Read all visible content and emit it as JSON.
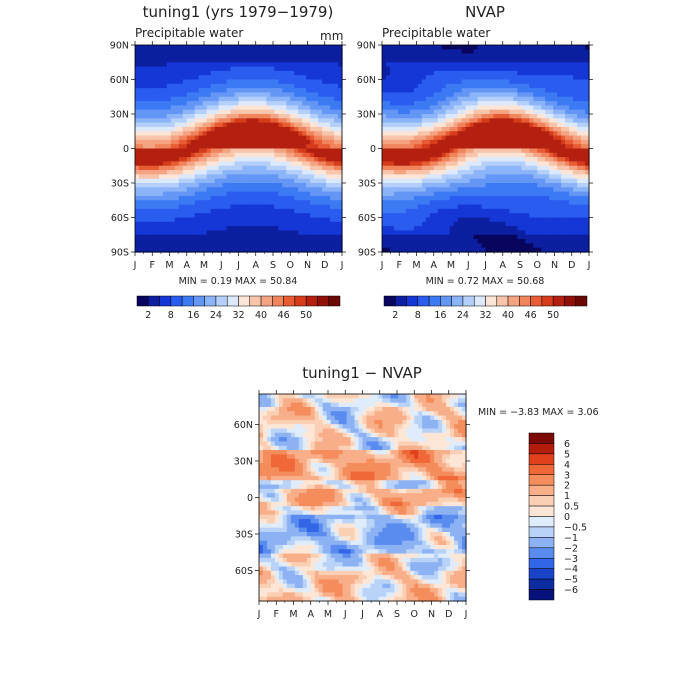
{
  "panels": [
    {
      "id": "p1",
      "title": "tuning1 (yrs 1979−1979)",
      "subtitle": "Precipitable water",
      "units": "mm",
      "minmax": "MIN =    0.19 MAX =    50.84"
    },
    {
      "id": "p2",
      "title": "NVAP",
      "subtitle": "Precipitable water",
      "units": "",
      "minmax": "MIN =    0.72 MAX =    50.68"
    },
    {
      "id": "p3",
      "title": "tuning1 − NVAP",
      "subtitle": "",
      "units": "",
      "minmax": "MIN =  −3.83 MAX =    3.06"
    }
  ],
  "abs_colorbar": {
    "labels": [
      "2",
      "8",
      "16",
      "24",
      "32",
      "40",
      "46",
      "50"
    ],
    "colors": [
      "#08055e",
      "#0c1fa0",
      "#1437d6",
      "#2a5cf0",
      "#3c7af4",
      "#6496f6",
      "#8cb4f8",
      "#b4d0fa",
      "#dce8fc",
      "#fce4d6",
      "#f8c4aa",
      "#f4a482",
      "#f0845c",
      "#e85c34",
      "#d43c1c",
      "#b42010",
      "#901008",
      "#6c0804"
    ]
  },
  "diff_colorbar": {
    "labels": [
      "6",
      "5",
      "4",
      "3",
      "2",
      "1",
      "0.5",
      "0",
      "−0.5",
      "−1",
      "−2",
      "−3",
      "−4",
      "−5",
      "−6"
    ],
    "colors": [
      "#7c0a06",
      "#b41c0c",
      "#e0401c",
      "#f06838",
      "#f48c5c",
      "#f8ae88",
      "#fbcfb4",
      "#fde6d6",
      "#deecfb",
      "#b8d2f8",
      "#8cb2f4",
      "#5a8cf0",
      "#3266e6",
      "#1a44c8",
      "#0c2ca0",
      "#06127a"
    ]
  },
  "chart_data": [
    {
      "type": "heatmap",
      "title": "tuning1 (yrs 1979−1979)",
      "subtitle": "Precipitable water",
      "units": "mm",
      "x_ticks": [
        "J",
        "F",
        "M",
        "A",
        "M",
        "J",
        "J",
        "A",
        "S",
        "O",
        "N",
        "D",
        "J"
      ],
      "y_ticks": [
        "90N",
        "60N",
        "30N",
        "0",
        "30S",
        "60S",
        "90S"
      ],
      "min": 0.19,
      "max": 50.84,
      "contour_levels": [
        2,
        5,
        8,
        12,
        16,
        20,
        24,
        28,
        32,
        36,
        40,
        43,
        46,
        48,
        50
      ]
    },
    {
      "type": "heatmap",
      "title": "NVAP",
      "subtitle": "Precipitable water",
      "x_ticks": [
        "J",
        "F",
        "M",
        "A",
        "M",
        "J",
        "J",
        "A",
        "S",
        "O",
        "N",
        "D",
        "J"
      ],
      "y_ticks": [
        "90N",
        "60N",
        "30N",
        "0",
        "30S",
        "60S",
        "90S"
      ],
      "min": 0.72,
      "max": 50.68,
      "contour_levels": [
        2,
        5,
        8,
        12,
        16,
        20,
        24,
        28,
        32,
        36,
        40,
        43,
        46,
        48,
        50
      ]
    },
    {
      "type": "heatmap",
      "title": "tuning1 − NVAP",
      "x_ticks": [
        "J",
        "F",
        "M",
        "A",
        "M",
        "J",
        "J",
        "A",
        "S",
        "O",
        "N",
        "D",
        "J"
      ],
      "y_ticks": [
        "60N",
        "30N",
        "0",
        "30S",
        "60S"
      ],
      "min": -3.83,
      "max": 3.06,
      "contour_levels": [
        -6,
        -5,
        -4,
        -3,
        -2,
        -1,
        -0.5,
        0,
        0.5,
        1,
        2,
        3,
        4,
        5,
        6
      ]
    }
  ]
}
